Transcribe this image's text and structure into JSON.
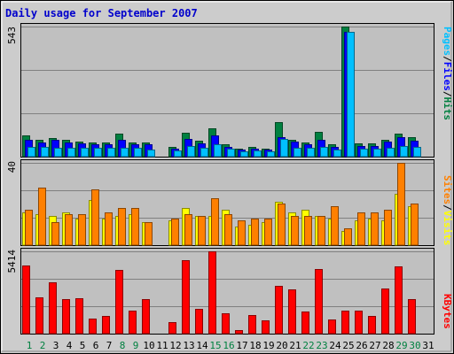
{
  "title": "Daily usage for September 2007",
  "colors": {
    "background": "#cccccc",
    "panel": "#c0c0c0",
    "title": "#0000cc",
    "hits": "#008040",
    "files": "#0000ff",
    "pages": "#00c0ff",
    "visits": "#ffff00",
    "sites": "#ff8000",
    "kbytes": "#ff0000",
    "weekend_label": "#008040",
    "weekday_label": "#000000"
  },
  "chart_data": [
    {
      "type": "bar",
      "panel": "top",
      "ymax_label": "543",
      "ylim": [
        0,
        543
      ],
      "legend": [
        "Pages",
        "/",
        "Files",
        "/",
        "Hits"
      ],
      "categories": [
        "1",
        "2",
        "3",
        "4",
        "5",
        "6",
        "7",
        "8",
        "9",
        "10",
        "11",
        "12",
        "13",
        "14",
        "15",
        "16",
        "17",
        "18",
        "19",
        "20",
        "21",
        "22",
        "23",
        "24",
        "25",
        "26",
        "27",
        "28",
        "29",
        "30",
        "31"
      ],
      "series": [
        {
          "name": "Hits",
          "values": [
            90,
            70,
            78,
            70,
            62,
            60,
            58,
            95,
            60,
            58,
            0,
            42,
            98,
            68,
            118,
            52,
            35,
            42,
            35,
            145,
            70,
            60,
            102,
            50,
            543,
            55,
            55,
            72,
            95,
            82,
            0
          ]
        },
        {
          "name": "Files",
          "values": [
            72,
            58,
            70,
            58,
            55,
            50,
            50,
            70,
            50,
            50,
            0,
            35,
            75,
            55,
            88,
            42,
            28,
            35,
            28,
            80,
            62,
            50,
            72,
            40,
            520,
            45,
            45,
            62,
            80,
            65,
            0
          ]
        },
        {
          "name": "Pages",
          "values": [
            42,
            40,
            38,
            38,
            38,
            38,
            38,
            38,
            36,
            28,
            0,
            26,
            45,
            38,
            50,
            32,
            24,
            26,
            24,
            75,
            38,
            36,
            42,
            30,
            520,
            34,
            32,
            38,
            45,
            40,
            0
          ]
        }
      ]
    },
    {
      "type": "bar",
      "panel": "middle",
      "ymax_label": "40",
      "ylim": [
        0,
        40
      ],
      "legend": [
        "Sites",
        "/",
        "Visits"
      ],
      "categories": [
        "1",
        "2",
        "3",
        "4",
        "5",
        "6",
        "7",
        "8",
        "9",
        "10",
        "11",
        "12",
        "13",
        "14",
        "15",
        "16",
        "17",
        "18",
        "19",
        "20",
        "21",
        "22",
        "23",
        "24",
        "25",
        "26",
        "27",
        "28",
        "29",
        "30",
        "31"
      ],
      "series": [
        {
          "name": "Visits",
          "values": [
            16,
            15,
            14,
            16,
            13,
            22,
            13,
            14,
            15,
            11,
            0,
            12,
            18,
            14,
            14,
            17,
            9,
            10,
            11,
            21,
            16,
            17,
            14,
            13,
            7,
            12,
            13,
            12,
            25,
            19,
            0
          ]
        },
        {
          "name": "Sites",
          "values": [
            17,
            28,
            11,
            15,
            15,
            27,
            16,
            18,
            18,
            11,
            0,
            13,
            15,
            14,
            23,
            15,
            12,
            13,
            13,
            20,
            14,
            14,
            14,
            19,
            8,
            16,
            16,
            17,
            40,
            20,
            0
          ]
        }
      ]
    },
    {
      "type": "bar",
      "panel": "bottom",
      "ymax_label": "5414",
      "ylim": [
        0,
        5414
      ],
      "legend": [
        "KBytes"
      ],
      "categories": [
        "1",
        "2",
        "3",
        "4",
        "5",
        "6",
        "7",
        "8",
        "9",
        "10",
        "11",
        "12",
        "13",
        "14",
        "15",
        "16",
        "17",
        "18",
        "19",
        "20",
        "21",
        "22",
        "23",
        "24",
        "25",
        "26",
        "27",
        "28",
        "29",
        "30",
        "31"
      ],
      "series": [
        {
          "name": "KBytes",
          "values": [
            4500,
            2400,
            3350,
            2250,
            2300,
            970,
            1150,
            4200,
            1530,
            2250,
            0,
            740,
            4840,
            1640,
            5414,
            1340,
            250,
            1200,
            880,
            3120,
            2900,
            1480,
            4270,
            950,
            1530,
            1530,
            1140,
            2990,
            4400,
            2250,
            0
          ]
        }
      ]
    }
  ],
  "weekend_days": [
    "1",
    "2",
    "8",
    "9",
    "15",
    "16",
    "22",
    "23",
    "29",
    "30"
  ]
}
